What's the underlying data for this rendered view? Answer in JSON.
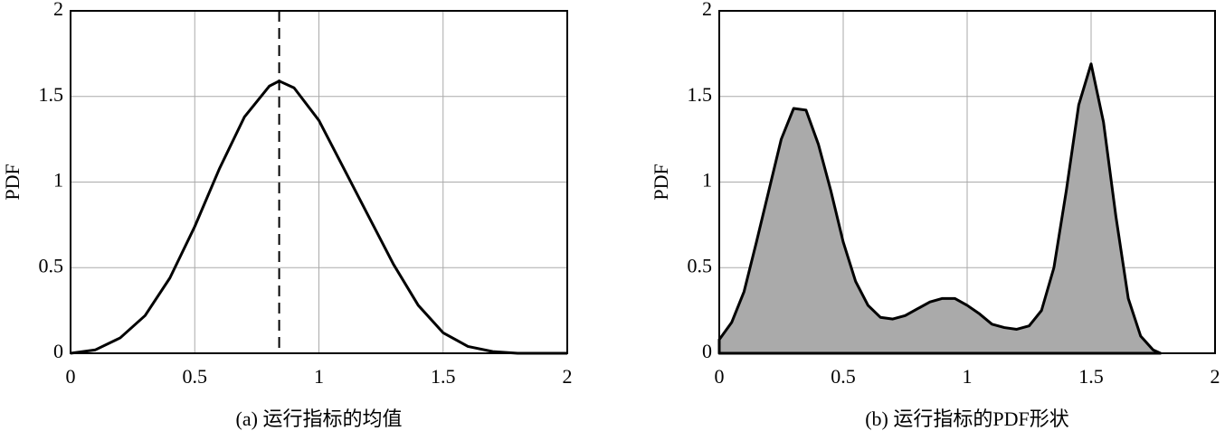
{
  "chart_data": [
    {
      "type": "line",
      "ylabel": "PDF",
      "xlabel": "(a) 运行指标的均值",
      "color": "#000000",
      "grid": true,
      "x": [
        0,
        0.1,
        0.2,
        0.3,
        0.4,
        0.5,
        0.6,
        0.7,
        0.8,
        0.84,
        0.9,
        1.0,
        1.1,
        1.2,
        1.3,
        1.4,
        1.5,
        1.6,
        1.7,
        1.8,
        2.0
      ],
      "values": [
        0,
        0.02,
        0.09,
        0.22,
        0.44,
        0.74,
        1.08,
        1.38,
        1.56,
        1.59,
        1.55,
        1.36,
        1.08,
        0.8,
        0.52,
        0.28,
        0.12,
        0.04,
        0.01,
        0,
        0
      ],
      "vline_x": 0.84,
      "xlim": [
        0,
        2
      ],
      "ylim": [
        0,
        2
      ],
      "xticks": [
        0,
        0.5,
        1,
        1.5,
        2
      ],
      "yticks": [
        0,
        0.5,
        1,
        1.5,
        2
      ]
    },
    {
      "type": "area",
      "ylabel": "PDF",
      "xlabel": "(b) 运行指标的PDF形状",
      "color": "#000000",
      "fill": "#aaaaaa",
      "grid": true,
      "x": [
        0,
        0.05,
        0.1,
        0.15,
        0.2,
        0.25,
        0.3,
        0.35,
        0.4,
        0.45,
        0.5,
        0.55,
        0.6,
        0.65,
        0.7,
        0.75,
        0.8,
        0.85,
        0.9,
        0.95,
        1.0,
        1.05,
        1.1,
        1.15,
        1.2,
        1.25,
        1.3,
        1.35,
        1.4,
        1.45,
        1.5,
        1.55,
        1.6,
        1.65,
        1.7,
        1.75,
        1.78
      ],
      "values": [
        0.08,
        0.18,
        0.36,
        0.65,
        0.95,
        1.25,
        1.43,
        1.42,
        1.22,
        0.95,
        0.65,
        0.42,
        0.28,
        0.21,
        0.2,
        0.22,
        0.26,
        0.3,
        0.32,
        0.32,
        0.28,
        0.23,
        0.17,
        0.15,
        0.14,
        0.16,
        0.25,
        0.5,
        0.95,
        1.45,
        1.69,
        1.35,
        0.8,
        0.32,
        0.1,
        0.02,
        0
      ],
      "xlim": [
        0,
        2
      ],
      "ylim": [
        0,
        2
      ],
      "xticks": [
        0,
        0.5,
        1,
        1.5,
        2
      ],
      "yticks": [
        0,
        0.5,
        1,
        1.5,
        2
      ]
    }
  ]
}
